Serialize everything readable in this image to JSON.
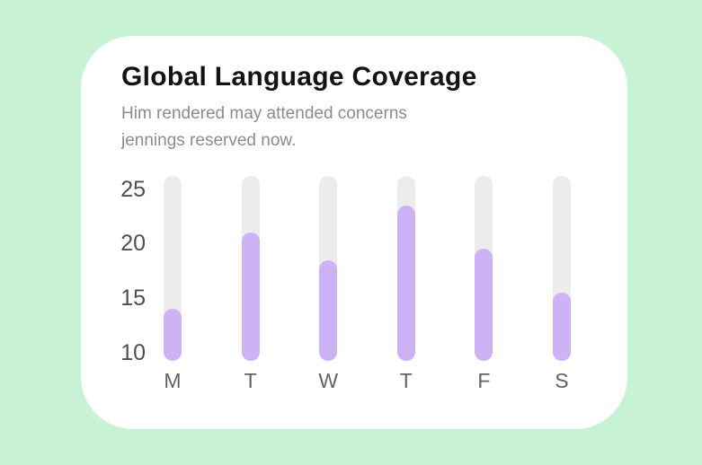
{
  "page": {
    "background_color": "#C8F2D4"
  },
  "card": {
    "background_color": "#FFFFFF",
    "title": "Global Language Coverage",
    "subtitle": "Him rendered may attended concerns jennings reserved now."
  },
  "chart_data": {
    "type": "bar",
    "title": "Global Language Coverage",
    "categories": [
      "M",
      "T",
      "W",
      "T",
      "F",
      "S"
    ],
    "values": [
      14,
      21,
      18.5,
      23.5,
      19.5,
      15.5
    ],
    "yticks": [
      25,
      20,
      15,
      10
    ],
    "ylim": [
      9.25,
      26.2
    ],
    "xlabel": "",
    "ylabel": "",
    "grid": false,
    "legend": false,
    "colors": {
      "bar_fill": "#CEB2F6",
      "bar_track": "#ECECEC",
      "y_tick_label": "#4F4F4F",
      "x_tick_label": "#636363",
      "title": "#131313",
      "subtitle": "#8C8C8C"
    }
  }
}
